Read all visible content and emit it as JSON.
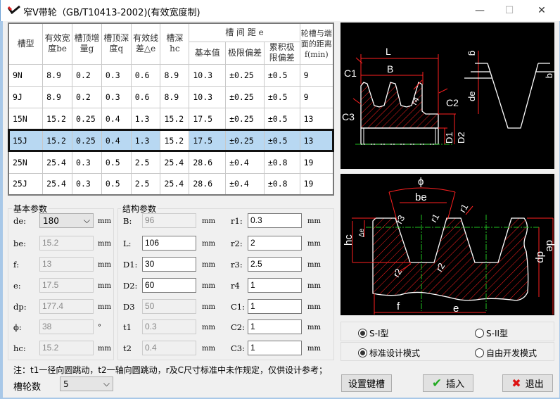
{
  "window": {
    "title": "窄V带轮（GB/T10413-2002)(有效宽度制)",
    "minimize": "—",
    "maximize": "☐",
    "close": "✕"
  },
  "table": {
    "headers": {
      "type": "槽型",
      "be": "有效宽度be",
      "g": "槽顶增量g",
      "q": "槽顶深度q",
      "de": "有效线差△e",
      "hc": "槽深hc",
      "spacing": "槽 间 距 e",
      "basic": "基本值",
      "limit": "极限偏差",
      "cum": "累积极限偏差",
      "f": "轮槽与端面的距离f(min)"
    },
    "rows": [
      [
        "9N",
        "8.9",
        "0.2",
        "0.3",
        "0.6",
        "8.9",
        "10.3",
        "±0.25",
        "±0.5",
        "9"
      ],
      [
        "9J",
        "8.9",
        "0.2",
        "0.3",
        "0.6",
        "8.9",
        "10.3",
        "±0.25",
        "±0.5",
        "9"
      ],
      [
        "15N",
        "15.2",
        "0.25",
        "0.4",
        "1.3",
        "15.2",
        "17.5",
        "±0.25",
        "±0.5",
        "13"
      ],
      [
        "15J",
        "15.2",
        "0.25",
        "0.4",
        "1.3",
        "15.2",
        "17.5",
        "±0.25",
        "±0.5",
        "13"
      ],
      [
        "25N",
        "25.4",
        "0.3",
        "0.5",
        "2.5",
        "25.4",
        "28.6",
        "±0.4",
        "±0.8",
        "19"
      ],
      [
        "25J",
        "25.4",
        "0.3",
        "0.5",
        "2.5",
        "25.4",
        "28.6",
        "±0.4",
        "±0.8",
        "19"
      ]
    ],
    "selected_row": "15J"
  },
  "basic": {
    "title": "基本参数",
    "fields": [
      {
        "label": "de:",
        "value": "180",
        "unit": "mm",
        "type": "combo"
      },
      {
        "label": "be:",
        "value": "15.2",
        "unit": "mm"
      },
      {
        "label": "f:",
        "value": "13",
        "unit": "mm"
      },
      {
        "label": "e:",
        "value": "17.5",
        "unit": "mm"
      },
      {
        "label": "dp:",
        "value": "177.4",
        "unit": "mm"
      },
      {
        "label": "ϕ:",
        "value": "38",
        "unit": "°"
      },
      {
        "label": "hc:",
        "value": "15.2",
        "unit": "mm"
      }
    ]
  },
  "structure": {
    "title": "结构参数",
    "left": [
      {
        "label": "B:",
        "value": "96",
        "unit": "mm",
        "disabled": true
      },
      {
        "label": "L:",
        "value": "106",
        "unit": "mm"
      },
      {
        "label": "D1:",
        "value": "30",
        "unit": "mm"
      },
      {
        "label": "D2:",
        "value": "60",
        "unit": "mm"
      },
      {
        "label": "D3",
        "value": "50",
        "unit": "mm",
        "disabled": true
      },
      {
        "label": "t1",
        "value": "0.3",
        "unit": "mm",
        "disabled": true
      },
      {
        "label": "t2",
        "value": "0.4",
        "unit": "mm",
        "disabled": true
      }
    ],
    "right": [
      {
        "label": "r1:",
        "value": "0.3",
        "unit": "mm"
      },
      {
        "label": "r2:",
        "value": "2",
        "unit": "mm"
      },
      {
        "label": "r3:",
        "value": "2.5",
        "unit": "mm"
      },
      {
        "label": "r4",
        "value": "1",
        "unit": "mm"
      },
      {
        "label": "C1:",
        "value": "1",
        "unit": "mm"
      },
      {
        "label": "C2:",
        "value": "1",
        "unit": "mm"
      },
      {
        "label": "C3:",
        "value": "1",
        "unit": "mm"
      }
    ]
  },
  "note": "注：t1一径向圆跳动，t2一轴向圆跳动，r及C尺寸标准中未作规定，仅供设计参考；",
  "wheel_count": {
    "label": "槽轮数",
    "value": "5"
  },
  "diagram1": {
    "labels": {
      "L": "L",
      "B": "B",
      "C1": "C1",
      "C2": "C2",
      "C3": "C3",
      "r4": "r4",
      "D1": "D1",
      "D2": "D2",
      "g": "g",
      "q": "q",
      "de": "de"
    }
  },
  "diagram2": {
    "labels": {
      "phi": "ϕ",
      "be": "be",
      "r3": "r3",
      "r1a": "r1",
      "r1b": "r1",
      "hc": "hc",
      "de_delta": "Δe",
      "r2a": "r2",
      "r2b": "r2",
      "dp": "dp",
      "de": "de",
      "f": "f",
      "e": "e"
    }
  },
  "options": {
    "type1": "S-I型",
    "type2": "S-II型",
    "mode1": "标准设计模式",
    "mode2": "自由开发模式",
    "type_selected": "S-I型",
    "mode_selected": "标准设计模式"
  },
  "buttons": {
    "keyway": "设置键槽",
    "insert": "插入",
    "exit": "退出"
  },
  "colors": {
    "selection": "#b8d8f2",
    "drawing_bg": "#000000",
    "hatch": "#ff2020",
    "centerline": "#20c020"
  }
}
